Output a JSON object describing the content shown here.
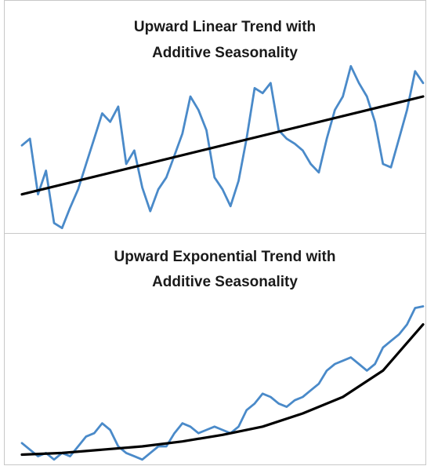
{
  "chart_data": [
    {
      "type": "line",
      "title": [
        "Upward Linear Trend with",
        "Additive Seasonality"
      ],
      "xlim": [
        0,
        100
      ],
      "ylim": [
        0,
        100
      ],
      "series": [
        {
          "color": "#4a8ac9",
          "x": [
            0,
            2,
            4,
            6,
            8,
            10,
            12,
            14,
            16,
            18,
            20,
            22,
            24,
            26,
            28,
            30,
            32,
            34,
            36,
            38,
            40,
            42,
            44,
            46,
            48,
            50,
            52,
            54,
            56,
            58,
            60,
            62,
            64,
            66,
            68,
            70,
            72,
            74,
            76,
            78,
            80,
            82,
            84,
            86,
            88,
            90,
            92,
            94,
            96,
            98,
            100
          ],
          "values": [
            51,
            55,
            22,
            36,
            5,
            2,
            14,
            25,
            40,
            55,
            70,
            65,
            74,
            40,
            48,
            26,
            12,
            25,
            32,
            45,
            58,
            80,
            72,
            60,
            32,
            25,
            15,
            30,
            55,
            85,
            82,
            88,
            60,
            55,
            52,
            48,
            40,
            35,
            55,
            72,
            80,
            98,
            88,
            80,
            65,
            40,
            38,
            55,
            72,
            95,
            88
          ]
        },
        {
          "color": "#000000",
          "x": [
            0,
            100
          ],
          "values": [
            22,
            80
          ]
        }
      ]
    },
    {
      "type": "line",
      "title": [
        "Upward Exponential Trend with",
        "Additive Seasonality"
      ],
      "xlim": [
        0,
        100
      ],
      "ylim": [
        0,
        100
      ],
      "series": [
        {
          "color": "#4a8ac9",
          "x": [
            0,
            2,
            4,
            6,
            8,
            10,
            12,
            14,
            16,
            18,
            20,
            22,
            24,
            26,
            28,
            30,
            32,
            34,
            36,
            38,
            40,
            42,
            44,
            46,
            48,
            50,
            52,
            54,
            56,
            58,
            60,
            62,
            64,
            66,
            68,
            70,
            72,
            74,
            76,
            78,
            80,
            82,
            84,
            86,
            88,
            90,
            92,
            94,
            96,
            98,
            100
          ],
          "values": [
            12,
            8,
            4,
            6,
            2,
            6,
            4,
            10,
            16,
            18,
            24,
            20,
            10,
            6,
            4,
            2,
            6,
            10,
            10,
            18,
            24,
            22,
            18,
            20,
            22,
            20,
            18,
            22,
            32,
            36,
            42,
            40,
            36,
            34,
            38,
            40,
            44,
            48,
            56,
            60,
            62,
            64,
            60,
            56,
            60,
            70,
            74,
            78,
            84,
            94,
            95
          ]
        },
        {
          "color": "#000000",
          "x": [
            0,
            10,
            20,
            30,
            40,
            50,
            60,
            70,
            80,
            90,
            100
          ],
          "values": [
            5,
            6,
            8,
            10,
            13,
            17,
            22,
            30,
            40,
            56,
            84
          ]
        }
      ]
    }
  ]
}
